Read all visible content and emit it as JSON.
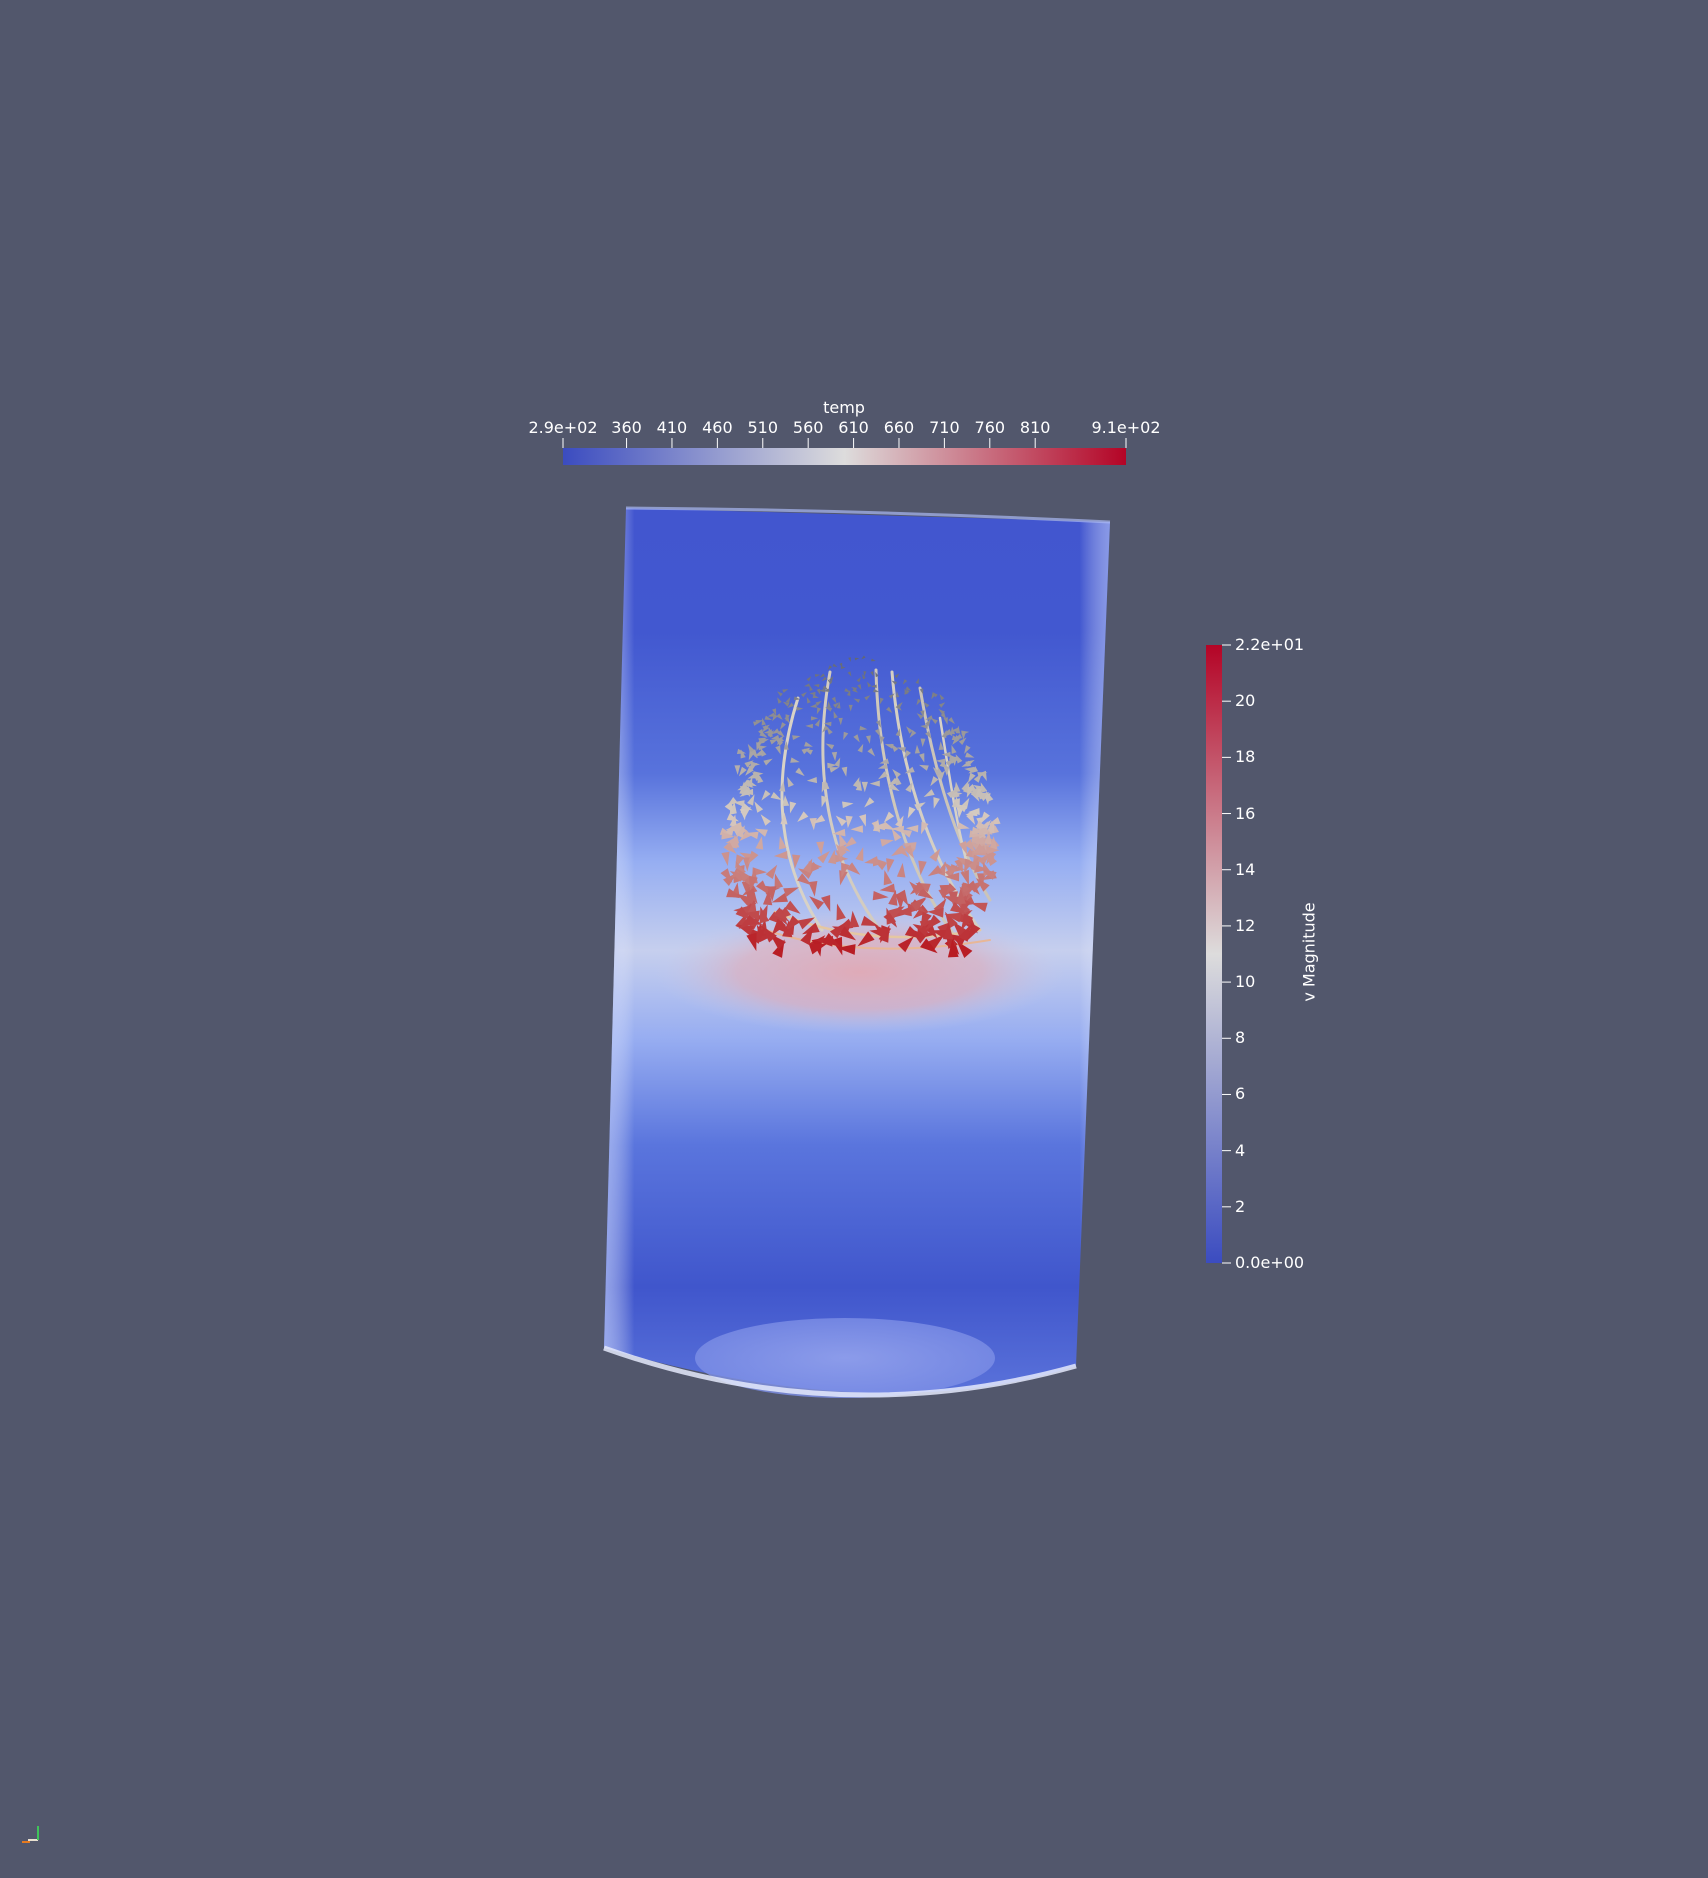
{
  "scalar_bars": {
    "temp": {
      "title": "temp",
      "orientation": "horizontal",
      "range": [
        290,
        910
      ],
      "ticks": [
        {
          "value": 290,
          "label": "2.9e+02"
        },
        {
          "value": 360,
          "label": "360"
        },
        {
          "value": 410,
          "label": "410"
        },
        {
          "value": 460,
          "label": "460"
        },
        {
          "value": 510,
          "label": "510"
        },
        {
          "value": 560,
          "label": "560"
        },
        {
          "value": 610,
          "label": "610"
        },
        {
          "value": 660,
          "label": "660"
        },
        {
          "value": 710,
          "label": "710"
        },
        {
          "value": 760,
          "label": "760"
        },
        {
          "value": 810,
          "label": "810"
        },
        {
          "value": 910,
          "label": "9.1e+02"
        }
      ],
      "colormap": [
        "#3b4cc0",
        "#dddcdc",
        "#b40426"
      ]
    },
    "v_magnitude": {
      "title": "v Magnitude",
      "orientation": "vertical",
      "range": [
        0,
        22
      ],
      "ticks": [
        {
          "value": 22,
          "label": "2.2e+01"
        },
        {
          "value": 20,
          "label": "20"
        },
        {
          "value": 18,
          "label": "18"
        },
        {
          "value": 16,
          "label": "16"
        },
        {
          "value": 14,
          "label": "14"
        },
        {
          "value": 12,
          "label": "12"
        },
        {
          "value": 10,
          "label": "10"
        },
        {
          "value": 8,
          "label": "8"
        },
        {
          "value": 6,
          "label": "6"
        },
        {
          "value": 4,
          "label": "4"
        },
        {
          "value": 2,
          "label": "2"
        },
        {
          "value": 0,
          "label": "0.0e+00"
        }
      ],
      "colormap": [
        "#3b4cc0",
        "#dddcdc",
        "#b40426"
      ]
    }
  },
  "colors": {
    "background": "#52576c",
    "cylinder": "#4056cc",
    "hot_band": "#d9a7b5",
    "glyph_hot": "#b81b22",
    "glyph_cold": "#5c6270"
  },
  "icons": [
    "orientation-axes-icon"
  ]
}
